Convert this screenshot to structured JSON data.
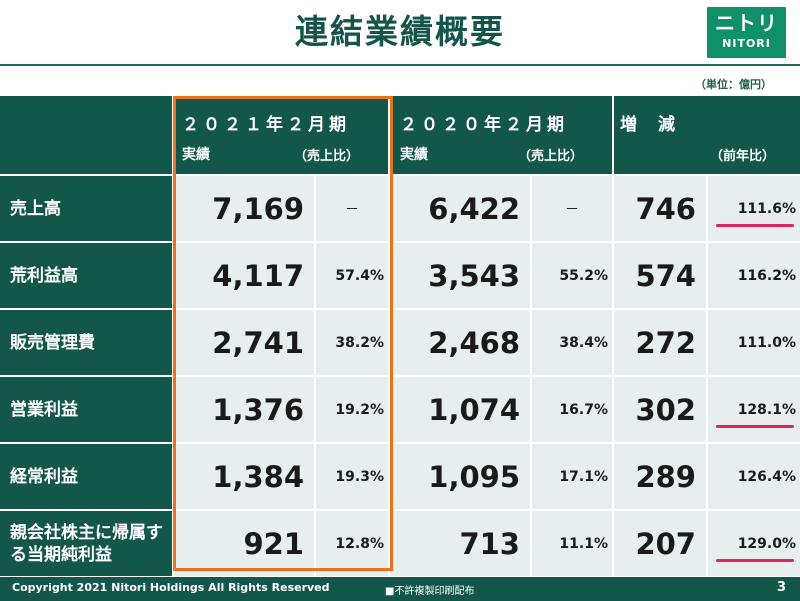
{
  "slide": {
    "title": "連結業績概要",
    "unit": "（単位：億円）",
    "logo_mark": "ニトリ",
    "logo_text": "NITORI",
    "page_number": "3"
  },
  "table": {
    "headers": {
      "fy2021_year": "２０２１年２月期",
      "fy2021_actual": "実績",
      "fy2021_ratio": "（売上比）",
      "fy2020_year": "２０２０年２月期",
      "fy2020_actual": "実績",
      "fy2020_ratio": "（売上比）",
      "change": "増　減",
      "change_ratio": "（前年比）"
    },
    "rows": [
      {
        "label": "売上高",
        "fy2021": "7,169",
        "fy2021_pct": "－",
        "fy2020": "6,422",
        "fy2020_pct": "－",
        "change": "746",
        "yoy": "111.6%"
      },
      {
        "label": "荒利益高",
        "fy2021": "4,117",
        "fy2021_pct": "57.4%",
        "fy2020": "3,543",
        "fy2020_pct": "55.2%",
        "change": "574",
        "yoy": "116.2%"
      },
      {
        "label": "販売管理費",
        "fy2021": "2,741",
        "fy2021_pct": "38.2%",
        "fy2020": "2,468",
        "fy2020_pct": "38.4%",
        "change": "272",
        "yoy": "111.0%"
      },
      {
        "label": "営業利益",
        "fy2021": "1,376",
        "fy2021_pct": "19.2%",
        "fy2020": "1,074",
        "fy2020_pct": "16.7%",
        "change": "302",
        "yoy": "128.1%"
      },
      {
        "label": "経常利益",
        "fy2021": "1,384",
        "fy2021_pct": "19.3%",
        "fy2020": "1,095",
        "fy2020_pct": "17.1%",
        "change": "289",
        "yoy": "126.4%"
      },
      {
        "label": "親会社株主に帰属する当期純利益",
        "fy2021": "921",
        "fy2021_pct": "12.8%",
        "fy2020": "713",
        "fy2020_pct": "11.1%",
        "change": "207",
        "yoy": "129.0%"
      }
    ],
    "underlined_yoy_rows": [
      0,
      3,
      5
    ]
  },
  "footer": {
    "copyright": "Copyright 2021 Nitori Holdings All Rights Reserved",
    "notice": "■不許複製印刷配布"
  },
  "colors": {
    "header_bg": "#13574b",
    "cell_bg": "#e6efed",
    "title": "#14544a",
    "highlight_frame": "#e8731c",
    "underline": "#e0245e",
    "logo_bg": "#0f8f6a"
  }
}
